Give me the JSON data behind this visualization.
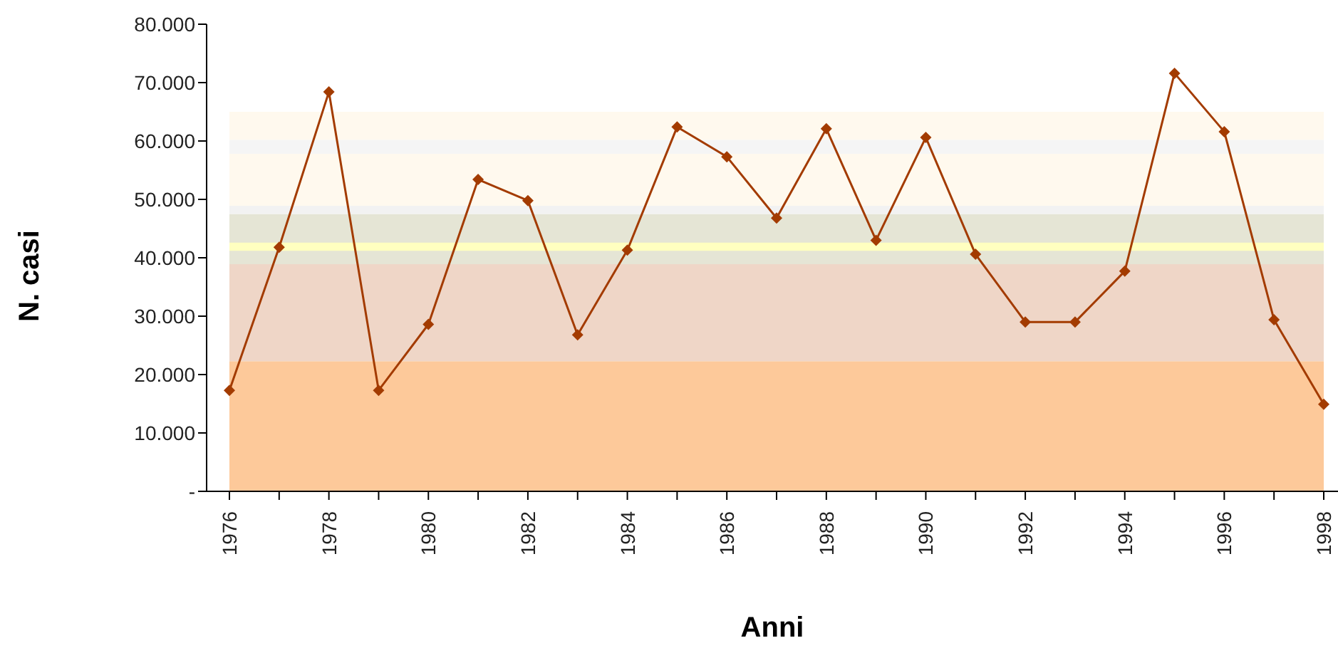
{
  "chart_data": {
    "type": "line",
    "xlabel": "Anni",
    "ylabel": "N. casi",
    "categories": [
      "1976",
      null,
      "1978",
      null,
      "1980",
      null,
      "1982",
      null,
      "1984",
      null,
      "1986",
      null,
      "1988",
      null,
      "1990",
      null,
      "1992",
      null,
      "1994",
      null,
      "1996",
      null,
      "1998"
    ],
    "series": [
      {
        "color": "#a33b00",
        "values": [
          17300,
          41800,
          68400,
          17300,
          28600,
          53400,
          49800,
          26800,
          41300,
          62400,
          57300,
          46800,
          62100,
          43000,
          60600,
          40600,
          29000,
          29000,
          37700,
          71600,
          61600,
          29400,
          14900
        ]
      }
    ],
    "ylim": [
      0,
      80000
    ],
    "yticks": [
      {
        "value": 0,
        "label": "-"
      },
      {
        "value": 10000,
        "label": "10.000"
      },
      {
        "value": 20000,
        "label": "20.000"
      },
      {
        "value": 30000,
        "label": "30.000"
      },
      {
        "value": 40000,
        "label": "40.000"
      },
      {
        "value": 50000,
        "label": "50.000"
      },
      {
        "value": 60000,
        "label": "60.000"
      },
      {
        "value": 70000,
        "label": "70.000"
      },
      {
        "value": 80000,
        "label": "80.000"
      }
    ],
    "bands": [
      {
        "axis": "y",
        "from": 0,
        "to": 22300,
        "color": "#fdc99a"
      },
      {
        "axis": "y",
        "from": 22300,
        "to": 38900,
        "color": "#efd6c7"
      },
      {
        "axis": "y",
        "from": 38900,
        "to": 47500,
        "color": "#e5e5d5"
      },
      {
        "axis": "y",
        "from": 41200,
        "to": 42600,
        "color": "#ffffc0"
      },
      {
        "axis": "y",
        "from": 47500,
        "to": 48900,
        "color": "#f2f2f2"
      },
      {
        "axis": "y",
        "from": 48900,
        "to": 57800,
        "color": "#fff9ee"
      },
      {
        "axis": "y",
        "from": 57800,
        "to": 60200,
        "color": "#f5f5f5"
      },
      {
        "axis": "y",
        "from": 60200,
        "to": 65000,
        "color": "#fff9ee"
      }
    ],
    "grid": false,
    "legend": false,
    "marker": "diamond",
    "line_style": "solid"
  }
}
